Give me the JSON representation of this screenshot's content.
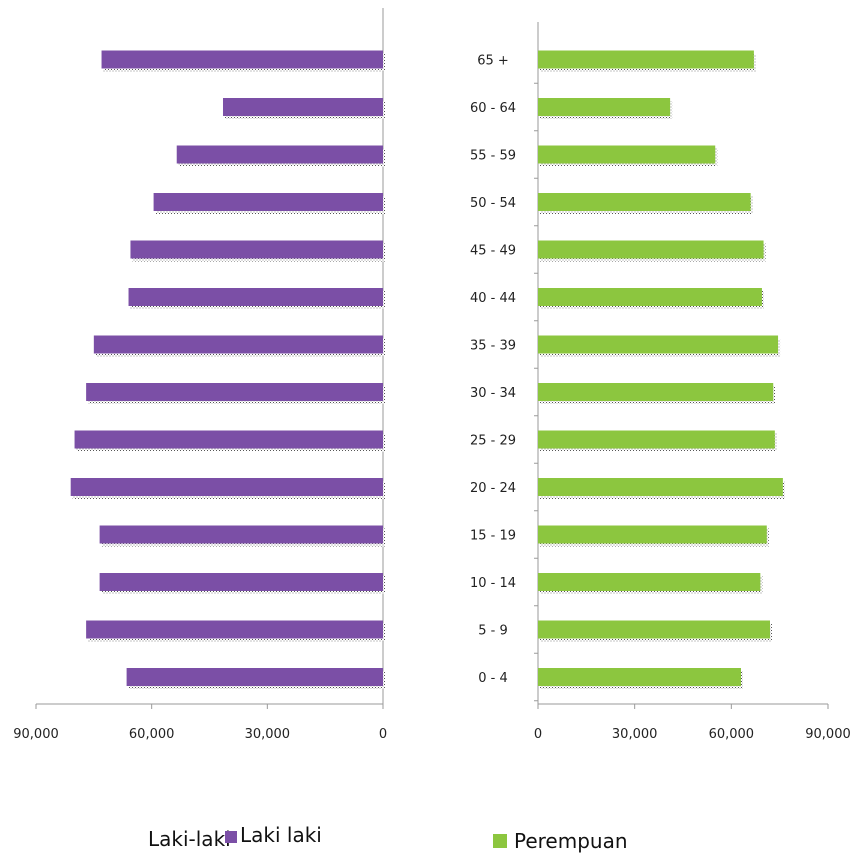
{
  "chart_data": {
    "type": "bar",
    "categories": [
      "0 - 4",
      "5 - 9",
      "10 - 14",
      "15 - 19",
      "20 - 24",
      "25 - 29",
      "30 - 34",
      "35 - 39",
      "40 - 44",
      "45 - 49",
      "50 - 54",
      "55 - 59",
      "60 - 64",
      "65 +"
    ],
    "series": [
      {
        "name": "Laki laki",
        "color": "#7b4fa6",
        "values": [
          66500,
          77000,
          73500,
          73500,
          81000,
          80000,
          77000,
          75000,
          66000,
          65500,
          59500,
          53500,
          41500,
          73000
        ]
      },
      {
        "name": "Perempuan",
        "color": "#8cc63f",
        "values": [
          63000,
          72000,
          69000,
          71000,
          76000,
          73500,
          73000,
          74500,
          69500,
          70000,
          66000,
          55000,
          41000,
          67000
        ]
      }
    ],
    "xlim": [
      0,
      90000
    ],
    "left_ticks": [
      "90,000",
      "60,000",
      "30,000",
      "0"
    ],
    "right_ticks": [
      "0",
      "30,000",
      "60,000",
      "90,000"
    ],
    "tick_values": [
      0,
      30000,
      60000,
      90000
    ],
    "legend": {
      "male_label_prefix": "Laki-laki",
      "male_label": "Laki laki",
      "female_label": "Perempuan"
    }
  }
}
